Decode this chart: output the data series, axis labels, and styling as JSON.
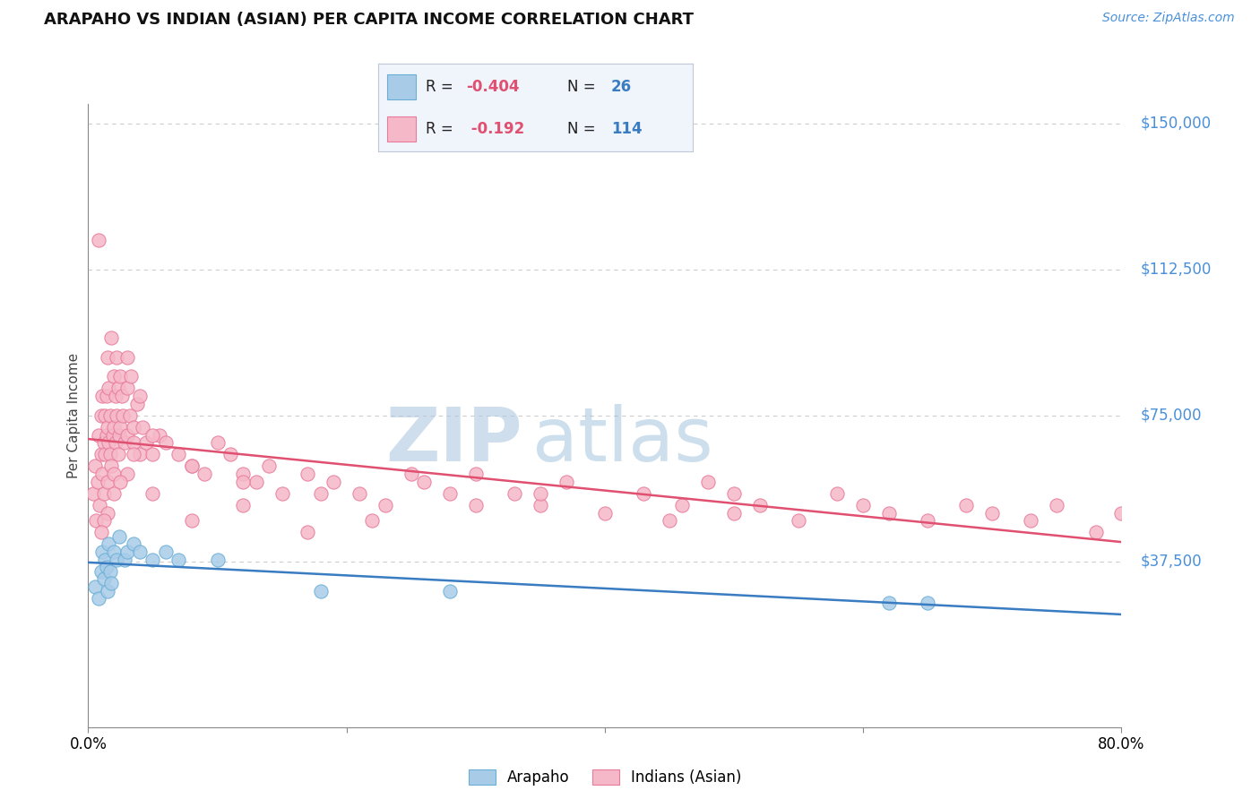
{
  "title": "ARAPAHO VS INDIAN (ASIAN) PER CAPITA INCOME CORRELATION CHART",
  "source": "Source: ZipAtlas.com",
  "ylabel": "Per Capita Income",
  "xlim": [
    0.0,
    80.0
  ],
  "ylim": [
    -5000,
    155000
  ],
  "watermark_zip": "ZIP",
  "watermark_atlas": "atlas",
  "arapaho_color": "#a8cce8",
  "arapaho_edge_color": "#6aaed6",
  "indian_color": "#f5b8c8",
  "indian_edge_color": "#e87a9a",
  "arapaho_line_color": "#3a7cc1",
  "indian_line_color": "#e05070",
  "legend_box_color": "#e8f0f8",
  "yticks": [
    0,
    37500,
    75000,
    112500,
    150000
  ],
  "ytick_labels": [
    "",
    "$37,500",
    "$75,000",
    "$112,500",
    "$150,000"
  ],
  "arapaho_scatter_x": [
    0.5,
    0.8,
    1.0,
    1.1,
    1.2,
    1.3,
    1.4,
    1.5,
    1.6,
    1.7,
    1.8,
    2.0,
    2.2,
    2.4,
    2.8,
    3.0,
    3.5,
    4.0,
    5.0,
    6.0,
    7.0,
    10.0,
    18.0,
    28.0,
    62.0,
    65.0
  ],
  "arapaho_scatter_y": [
    31000,
    28000,
    35000,
    40000,
    33000,
    38000,
    36000,
    30000,
    42000,
    35000,
    32000,
    40000,
    38000,
    44000,
    38000,
    40000,
    42000,
    40000,
    38000,
    40000,
    38000,
    38000,
    30000,
    30000,
    27000,
    27000
  ],
  "indian_scatter_x": [
    0.4,
    0.5,
    0.6,
    0.7,
    0.8,
    0.9,
    1.0,
    1.0,
    1.1,
    1.1,
    1.2,
    1.2,
    1.3,
    1.3,
    1.4,
    1.4,
    1.5,
    1.5,
    1.5,
    1.6,
    1.6,
    1.7,
    1.7,
    1.8,
    1.8,
    1.9,
    2.0,
    2.0,
    2.0,
    2.1,
    2.1,
    2.2,
    2.2,
    2.3,
    2.3,
    2.4,
    2.5,
    2.5,
    2.6,
    2.7,
    2.8,
    3.0,
    3.0,
    3.0,
    3.2,
    3.3,
    3.5,
    3.5,
    3.8,
    4.0,
    4.0,
    4.2,
    4.5,
    5.0,
    5.5,
    6.0,
    7.0,
    8.0,
    9.0,
    10.0,
    11.0,
    12.0,
    13.0,
    14.0,
    15.0,
    17.0,
    19.0,
    21.0,
    23.0,
    26.0,
    28.0,
    30.0,
    33.0,
    35.0,
    37.0,
    40.0,
    43.0,
    46.0,
    48.0,
    50.0,
    52.0,
    55.0,
    58.0,
    60.0,
    62.0,
    65.0,
    68.0,
    70.0,
    73.0,
    75.0,
    78.0,
    80.0,
    45.0,
    30.0,
    22.0,
    17.0,
    12.0,
    8.0,
    5.0,
    3.0,
    2.5,
    2.0,
    1.5,
    1.2,
    1.0,
    0.8,
    3.5,
    5.0,
    8.0,
    12.0,
    18.0,
    25.0,
    35.0,
    50.0
  ],
  "indian_scatter_y": [
    55000,
    62000,
    48000,
    58000,
    70000,
    52000,
    75000,
    65000,
    80000,
    60000,
    68000,
    55000,
    75000,
    65000,
    80000,
    70000,
    90000,
    72000,
    58000,
    68000,
    82000,
    65000,
    75000,
    95000,
    62000,
    70000,
    85000,
    72000,
    60000,
    80000,
    68000,
    90000,
    75000,
    65000,
    82000,
    70000,
    85000,
    72000,
    80000,
    75000,
    68000,
    90000,
    82000,
    70000,
    75000,
    85000,
    72000,
    68000,
    78000,
    65000,
    80000,
    72000,
    68000,
    65000,
    70000,
    68000,
    65000,
    62000,
    60000,
    68000,
    65000,
    60000,
    58000,
    62000,
    55000,
    60000,
    58000,
    55000,
    52000,
    58000,
    55000,
    60000,
    55000,
    52000,
    58000,
    50000,
    55000,
    52000,
    58000,
    55000,
    52000,
    48000,
    55000,
    52000,
    50000,
    48000,
    52000,
    50000,
    48000,
    52000,
    45000,
    50000,
    48000,
    52000,
    48000,
    45000,
    52000,
    48000,
    55000,
    60000,
    58000,
    55000,
    50000,
    48000,
    45000,
    120000,
    65000,
    70000,
    62000,
    58000,
    55000,
    60000,
    55000,
    50000
  ]
}
